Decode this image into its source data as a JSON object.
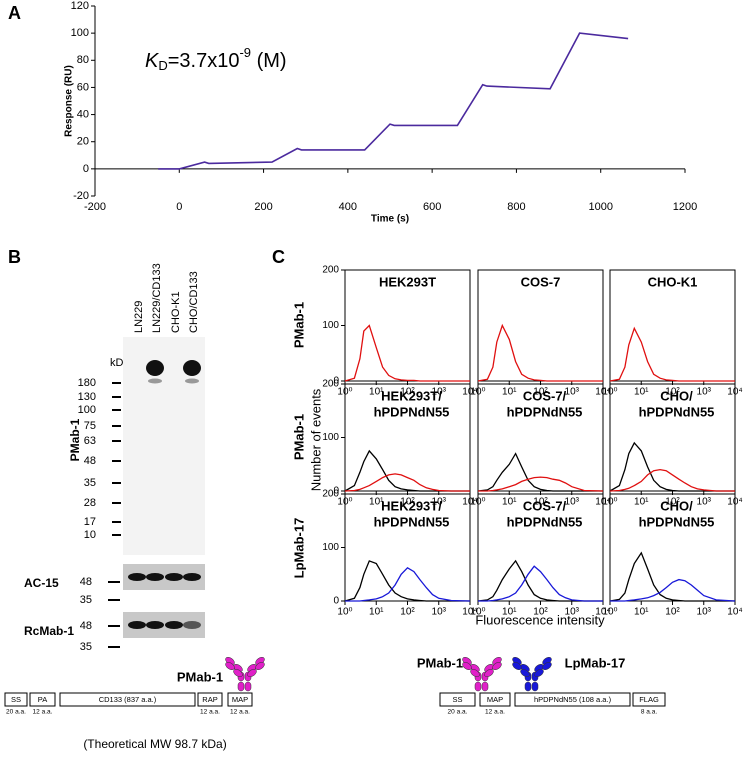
{
  "panel_labels": [
    "A",
    "B",
    "C"
  ],
  "chart_data": [
    {
      "type": "line",
      "xlabel": "Time (s)",
      "ylabel": "Response (RU)",
      "annotation": {
        "symbol": "K",
        "subscript": "D",
        "text": "=3.7x10",
        "superscript": "-9",
        "unit": " (M)"
      },
      "x": [
        -50,
        0,
        60,
        70,
        220,
        280,
        290,
        440,
        500,
        510,
        660,
        720,
        730,
        880,
        950,
        1065
      ],
      "values": [
        0,
        0,
        5,
        4,
        5,
        15,
        14,
        14,
        33,
        32,
        32,
        62,
        61,
        59,
        100,
        96
      ],
      "color": "#4b2a9e",
      "xlim": [
        -200,
        1200
      ],
      "xticks": [
        -200,
        0,
        200,
        400,
        600,
        800,
        1000,
        1200
      ],
      "ylim": [
        -20,
        120
      ],
      "yticks": [
        -20,
        0,
        20,
        40,
        60,
        80,
        100,
        120
      ]
    },
    {
      "type": "line",
      "log_x": true,
      "title": [
        "HEK293T"
      ],
      "x": [
        1,
        2,
        3,
        4,
        6,
        10,
        16,
        25,
        40,
        63,
        100,
        160,
        250,
        400,
        630,
        1000,
        2500,
        10000
      ],
      "series": [
        {
          "color": "#e01010",
          "values": [
            0,
            5,
            40,
            90,
            100,
            60,
            25,
            10,
            4,
            2,
            1,
            1,
            0,
            0,
            0,
            0,
            0,
            0
          ]
        }
      ],
      "xlim": [
        1,
        10000
      ],
      "ylim": [
        0,
        200
      ],
      "yticks": [
        0,
        100,
        200
      ],
      "xticks": [
        {
          "value": 1,
          "label": "10⁰"
        },
        {
          "value": 10,
          "label": "10¹"
        },
        {
          "value": 100,
          "label": "10²"
        },
        {
          "value": 1000,
          "label": "10³"
        },
        {
          "value": 10000,
          "label": "10⁴"
        }
      ]
    },
    {
      "type": "line",
      "log_x": true,
      "title": [
        "COS-7"
      ],
      "x": [
        1,
        2,
        3,
        4,
        6,
        10,
        16,
        25,
        40,
        63,
        100,
        160,
        250,
        400,
        630,
        1000,
        2500,
        10000
      ],
      "series": [
        {
          "color": "#e01010",
          "values": [
            0,
            3,
            25,
            70,
            100,
            75,
            35,
            12,
            5,
            2,
            1,
            0,
            0,
            0,
            0,
            0,
            0,
            0
          ]
        }
      ],
      "xlim": [
        1,
        10000
      ],
      "ylim": [
        0,
        200
      ],
      "xticks": [
        {
          "value": 1,
          "label": "10⁰"
        },
        {
          "value": 10,
          "label": "10¹"
        },
        {
          "value": 100,
          "label": "10²"
        },
        {
          "value": 1000,
          "label": "10³"
        },
        {
          "value": 10000,
          "label": "10⁴"
        }
      ]
    },
    {
      "type": "line",
      "log_x": true,
      "title": [
        "CHO-K1"
      ],
      "x": [
        1,
        2,
        3,
        4,
        6,
        10,
        16,
        25,
        40,
        63,
        100,
        160,
        250,
        400,
        630,
        1000,
        2500,
        10000
      ],
      "series": [
        {
          "color": "#e01010",
          "values": [
            0,
            3,
            25,
            65,
            95,
            70,
            35,
            12,
            5,
            2,
            1,
            0,
            0,
            0,
            0,
            0,
            0,
            0
          ]
        }
      ],
      "xlim": [
        1,
        10000
      ],
      "ylim": [
        0,
        200
      ],
      "xticks": [
        {
          "value": 1,
          "label": "10⁰"
        },
        {
          "value": 10,
          "label": "10¹"
        },
        {
          "value": 100,
          "label": "10²"
        },
        {
          "value": 1000,
          "label": "10³"
        },
        {
          "value": 10000,
          "label": "10⁴"
        }
      ]
    },
    {
      "type": "line",
      "log_x": true,
      "title": [
        "HEK293T/",
        "hPDPNdN55"
      ],
      "x": [
        1,
        2,
        3,
        4,
        6,
        10,
        16,
        25,
        40,
        63,
        100,
        160,
        250,
        400,
        630,
        1000,
        2500,
        10000
      ],
      "series": [
        {
          "color": "#000000",
          "values": [
            0,
            10,
            35,
            55,
            75,
            60,
            40,
            20,
            8,
            4,
            2,
            1,
            0,
            0,
            0,
            0,
            0,
            0
          ]
        },
        {
          "color": "#e01010",
          "values": [
            0,
            1,
            3,
            6,
            10,
            18,
            25,
            30,
            32,
            30,
            25,
            20,
            12,
            6,
            3,
            1,
            0,
            0
          ]
        }
      ],
      "xlim": [
        1,
        10000
      ],
      "ylim": [
        0,
        200
      ],
      "yticks": [
        0,
        100,
        200
      ],
      "xticks": [
        {
          "value": 1,
          "label": "10⁰"
        },
        {
          "value": 10,
          "label": "10¹"
        },
        {
          "value": 100,
          "label": "10²"
        },
        {
          "value": 1000,
          "label": "10³"
        },
        {
          "value": 10000,
          "label": "10⁴"
        }
      ]
    },
    {
      "type": "line",
      "log_x": true,
      "title": [
        "COS-7/",
        "hPDPNdN55"
      ],
      "x": [
        1,
        2,
        3,
        4,
        6,
        10,
        16,
        25,
        40,
        63,
        100,
        160,
        250,
        400,
        630,
        1000,
        2500,
        10000
      ],
      "series": [
        {
          "color": "#000000",
          "values": [
            0,
            2,
            8,
            20,
            35,
            50,
            70,
            45,
            20,
            8,
            3,
            1,
            0,
            0,
            0,
            0,
            0,
            0
          ]
        },
        {
          "color": "#e01010",
          "values": [
            0,
            0,
            1,
            2,
            4,
            8,
            12,
            18,
            22,
            25,
            26,
            25,
            22,
            20,
            15,
            8,
            1,
            0
          ]
        }
      ],
      "xlim": [
        1,
        10000
      ],
      "ylim": [
        0,
        200
      ],
      "xticks": [
        {
          "value": 1,
          "label": "10⁰"
        },
        {
          "value": 10,
          "label": "10¹"
        },
        {
          "value": 100,
          "label": "10²"
        },
        {
          "value": 1000,
          "label": "10³"
        },
        {
          "value": 10000,
          "label": "10⁴"
        }
      ]
    },
    {
      "type": "line",
      "log_x": true,
      "title": [
        "CHO/",
        "hPDPNdN55"
      ],
      "x": [
        1,
        2,
        3,
        4,
        6,
        10,
        16,
        25,
        40,
        63,
        100,
        160,
        250,
        400,
        630,
        1000,
        2500,
        10000
      ],
      "series": [
        {
          "color": "#000000",
          "values": [
            0,
            10,
            40,
            70,
            90,
            75,
            45,
            20,
            8,
            3,
            1,
            0,
            0,
            0,
            0,
            0,
            0,
            0
          ]
        },
        {
          "color": "#e01010",
          "values": [
            0,
            1,
            3,
            5,
            10,
            18,
            30,
            38,
            40,
            38,
            30,
            22,
            15,
            8,
            4,
            2,
            0,
            0
          ]
        }
      ],
      "xlim": [
        1,
        10000
      ],
      "ylim": [
        0,
        200
      ],
      "xticks": [
        {
          "value": 1,
          "label": "10⁰"
        },
        {
          "value": 10,
          "label": "10¹"
        },
        {
          "value": 100,
          "label": "10²"
        },
        {
          "value": 1000,
          "label": "10³"
        },
        {
          "value": 10000,
          "label": "10⁴"
        }
      ]
    },
    {
      "type": "line",
      "log_x": true,
      "title": [
        "HEK293T/",
        "hPDPNdN55"
      ],
      "x": [
        1,
        2,
        3,
        4,
        6,
        10,
        16,
        25,
        40,
        63,
        100,
        160,
        250,
        400,
        630,
        1000,
        2500,
        10000
      ],
      "series": [
        {
          "color": "#000000",
          "values": [
            0,
            5,
            25,
            50,
            75,
            70,
            50,
            30,
            15,
            8,
            4,
            2,
            1,
            0,
            0,
            0,
            0,
            0
          ]
        },
        {
          "color": "#1818d8",
          "values": [
            0,
            0,
            0,
            1,
            2,
            4,
            8,
            15,
            30,
            50,
            62,
            55,
            40,
            25,
            12,
            5,
            1,
            0
          ]
        }
      ],
      "xlim": [
        1,
        10000
      ],
      "ylim": [
        0,
        200
      ],
      "yticks": [
        0,
        100,
        200
      ],
      "xticks": [
        {
          "value": 1,
          "label": "10⁰"
        },
        {
          "value": 10,
          "label": "10¹"
        },
        {
          "value": 100,
          "label": "10²"
        },
        {
          "value": 1000,
          "label": "10³"
        },
        {
          "value": 10000,
          "label": "10⁴"
        }
      ]
    },
    {
      "type": "line",
      "log_x": true,
      "title": [
        "COS-7/",
        "hPDPNdN55"
      ],
      "x": [
        1,
        2,
        3,
        4,
        6,
        10,
        16,
        25,
        40,
        63,
        100,
        160,
        250,
        400,
        630,
        1000,
        2500,
        10000
      ],
      "series": [
        {
          "color": "#000000",
          "values": [
            0,
            2,
            8,
            20,
            40,
            60,
            75,
            55,
            30,
            12,
            5,
            2,
            1,
            0,
            0,
            0,
            0,
            0
          ]
        },
        {
          "color": "#1818d8",
          "values": [
            0,
            0,
            1,
            2,
            4,
            8,
            15,
            30,
            50,
            65,
            55,
            40,
            25,
            12,
            6,
            2,
            0,
            0
          ]
        }
      ],
      "xlim": [
        1,
        10000
      ],
      "ylim": [
        0,
        200
      ],
      "xticks": [
        {
          "value": 1,
          "label": "10⁰"
        },
        {
          "value": 10,
          "label": "10¹"
        },
        {
          "value": 100,
          "label": "10²"
        },
        {
          "value": 1000,
          "label": "10³"
        },
        {
          "value": 10000,
          "label": "10⁴"
        }
      ]
    },
    {
      "type": "line",
      "log_x": true,
      "title": [
        "CHO/",
        "hPDPNdN55"
      ],
      "x": [
        1,
        2,
        3,
        4,
        6,
        10,
        16,
        25,
        40,
        63,
        100,
        160,
        250,
        400,
        630,
        1000,
        2500,
        10000
      ],
      "series": [
        {
          "color": "#000000",
          "values": [
            0,
            3,
            15,
            40,
            70,
            90,
            60,
            30,
            12,
            5,
            2,
            1,
            0,
            0,
            0,
            0,
            0,
            0
          ]
        },
        {
          "color": "#1818d8",
          "values": [
            0,
            0,
            0,
            1,
            2,
            4,
            6,
            10,
            16,
            25,
            35,
            40,
            38,
            30,
            20,
            10,
            2,
            0
          ]
        }
      ],
      "xlim": [
        1,
        10000
      ],
      "ylim": [
        0,
        200
      ],
      "xticks": [
        {
          "value": 1,
          "label": "10⁰"
        },
        {
          "value": 10,
          "label": "10¹"
        },
        {
          "value": 100,
          "label": "10²"
        },
        {
          "value": 1000,
          "label": "10³"
        },
        {
          "value": 10000,
          "label": "10⁴"
        }
      ]
    }
  ],
  "panel_b": {
    "lanes": [
      "LN229",
      "LN229/CD133",
      "CHO-K1",
      "CHO/CD133"
    ],
    "unit": "kDa",
    "blots": [
      {
        "antibody": "PMab-1",
        "markers": [
          "180",
          "130",
          "100",
          "75",
          "63",
          "48",
          "35",
          "28",
          "17",
          "10"
        ]
      },
      {
        "antibody": "AC-15",
        "markers": [
          "48",
          "35"
        ]
      },
      {
        "antibody": "RcMab-1",
        "markers": [
          "48",
          "35"
        ]
      }
    ]
  },
  "panel_c": {
    "row_labels": [
      {
        "text": "PMab-1",
        "color": "#e01010"
      },
      {
        "text": "PMab-1",
        "color": "#e01010"
      },
      {
        "text": "LpMab-17",
        "color": "#1818d8"
      }
    ],
    "ylabel": "Number of events",
    "xlabel": "Fluorescence intensity"
  },
  "constructs": [
    {
      "antibodies": [
        {
          "name": "PMab-1",
          "color": "#e020c8"
        }
      ],
      "domains": [
        {
          "name": "SS",
          "length": "20 a.a.",
          "color": "#e07820"
        },
        {
          "name": "PA",
          "length": "12 a.a.",
          "color": "#9030e0"
        },
        {
          "name": "CD133 (837 a.a.)",
          "color": "#000000"
        },
        {
          "name": "RAP",
          "length": "12 a.a.",
          "color": "#20a040"
        },
        {
          "name": "MAP",
          "length": "12 a.a.",
          "color": "#e020c8"
        }
      ],
      "note": "(Theoretical MW 98.7 kDa)"
    },
    {
      "antibodies": [
        {
          "name": "PMab-1",
          "color": "#e020c8"
        },
        {
          "name": "LpMab-17",
          "color": "#1818d8"
        }
      ],
      "domains": [
        {
          "name": "SS",
          "length": "20 a.a.",
          "color": "#e07820"
        },
        {
          "name": "MAP",
          "length": "12 a.a.",
          "color": "#e020c8"
        },
        {
          "name": "hPDPNdN55 (108 a.a.)",
          "color": "#000000"
        },
        {
          "name": "FLAG",
          "length": "8 a.a.",
          "color": "#f090b0"
        }
      ]
    }
  ]
}
